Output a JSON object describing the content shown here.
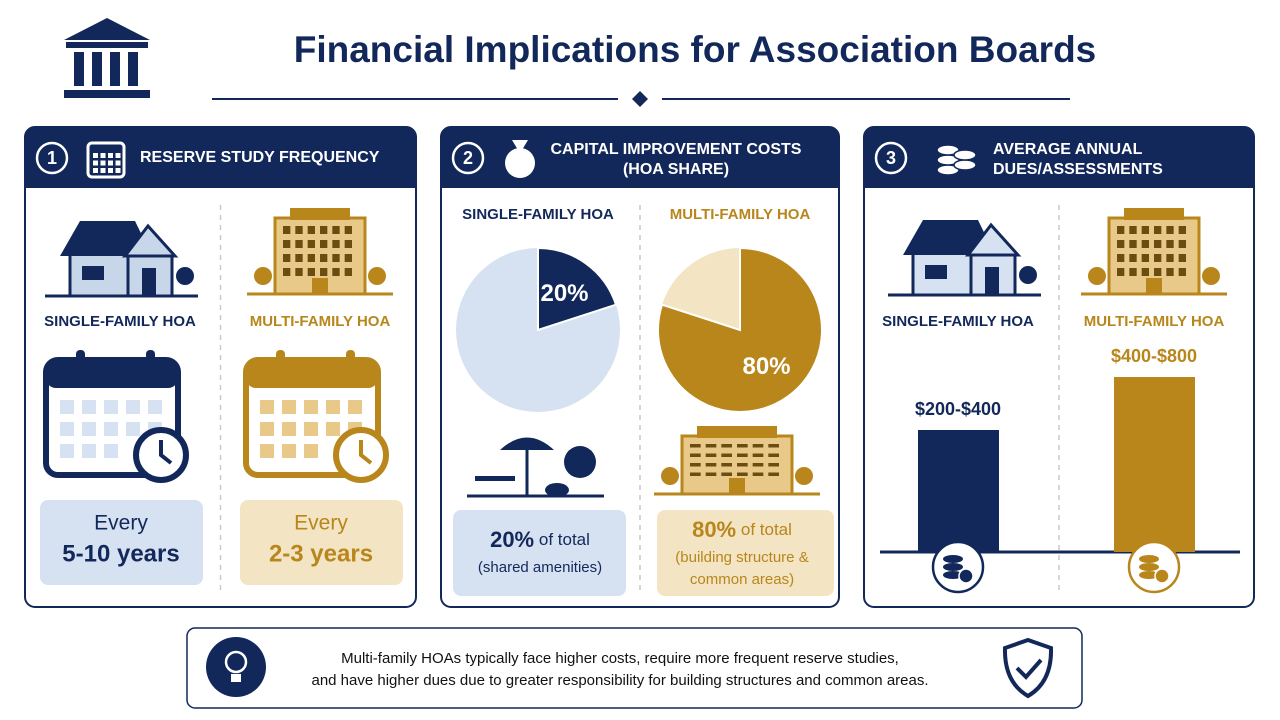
{
  "header": {
    "title": "Financial Implications for Association Boards"
  },
  "panels": [
    {
      "number": "1",
      "title_lines": [
        "RESERVE STUDY FREQUENCY"
      ],
      "columns": [
        {
          "label": "SINGLE-FAMILY HOA",
          "line1": "Every",
          "line2": "5-10 years"
        },
        {
          "label": "MULTI-FAMILY HOA",
          "line1": "Every",
          "line2": "2-3 years"
        }
      ]
    },
    {
      "number": "2",
      "title_lines": [
        "CAPITAL IMPROVEMENT COSTS",
        "(HOA SHARE)"
      ],
      "columns": [
        {
          "label": "SINGLE-FAMILY HOA",
          "share": 20,
          "share_label": "20%",
          "suffix": "of total",
          "note_lines": [
            "(shared amenities)"
          ]
        },
        {
          "label": "MULTI-FAMILY HOA",
          "share": 80,
          "share_label": "80%",
          "suffix": "of total",
          "note_lines": [
            "(building structure &",
            "common areas)"
          ]
        }
      ]
    },
    {
      "number": "3",
      "title_lines": [
        "AVERAGE ANNUAL",
        "DUES/ASSESSMENTS"
      ],
      "columns": [
        {
          "label": "SINGLE-FAMILY HOA",
          "range": "$200-$400"
        },
        {
          "label": "MULTI-FAMILY HOA",
          "range": "$400-$800"
        }
      ]
    }
  ],
  "footer": {
    "lines": [
      "Multi-family HOAs typically face higher costs, require more frequent reserve studies,",
      "and have higher dues due to greater responsibility for building structures and common areas."
    ]
  }
}
